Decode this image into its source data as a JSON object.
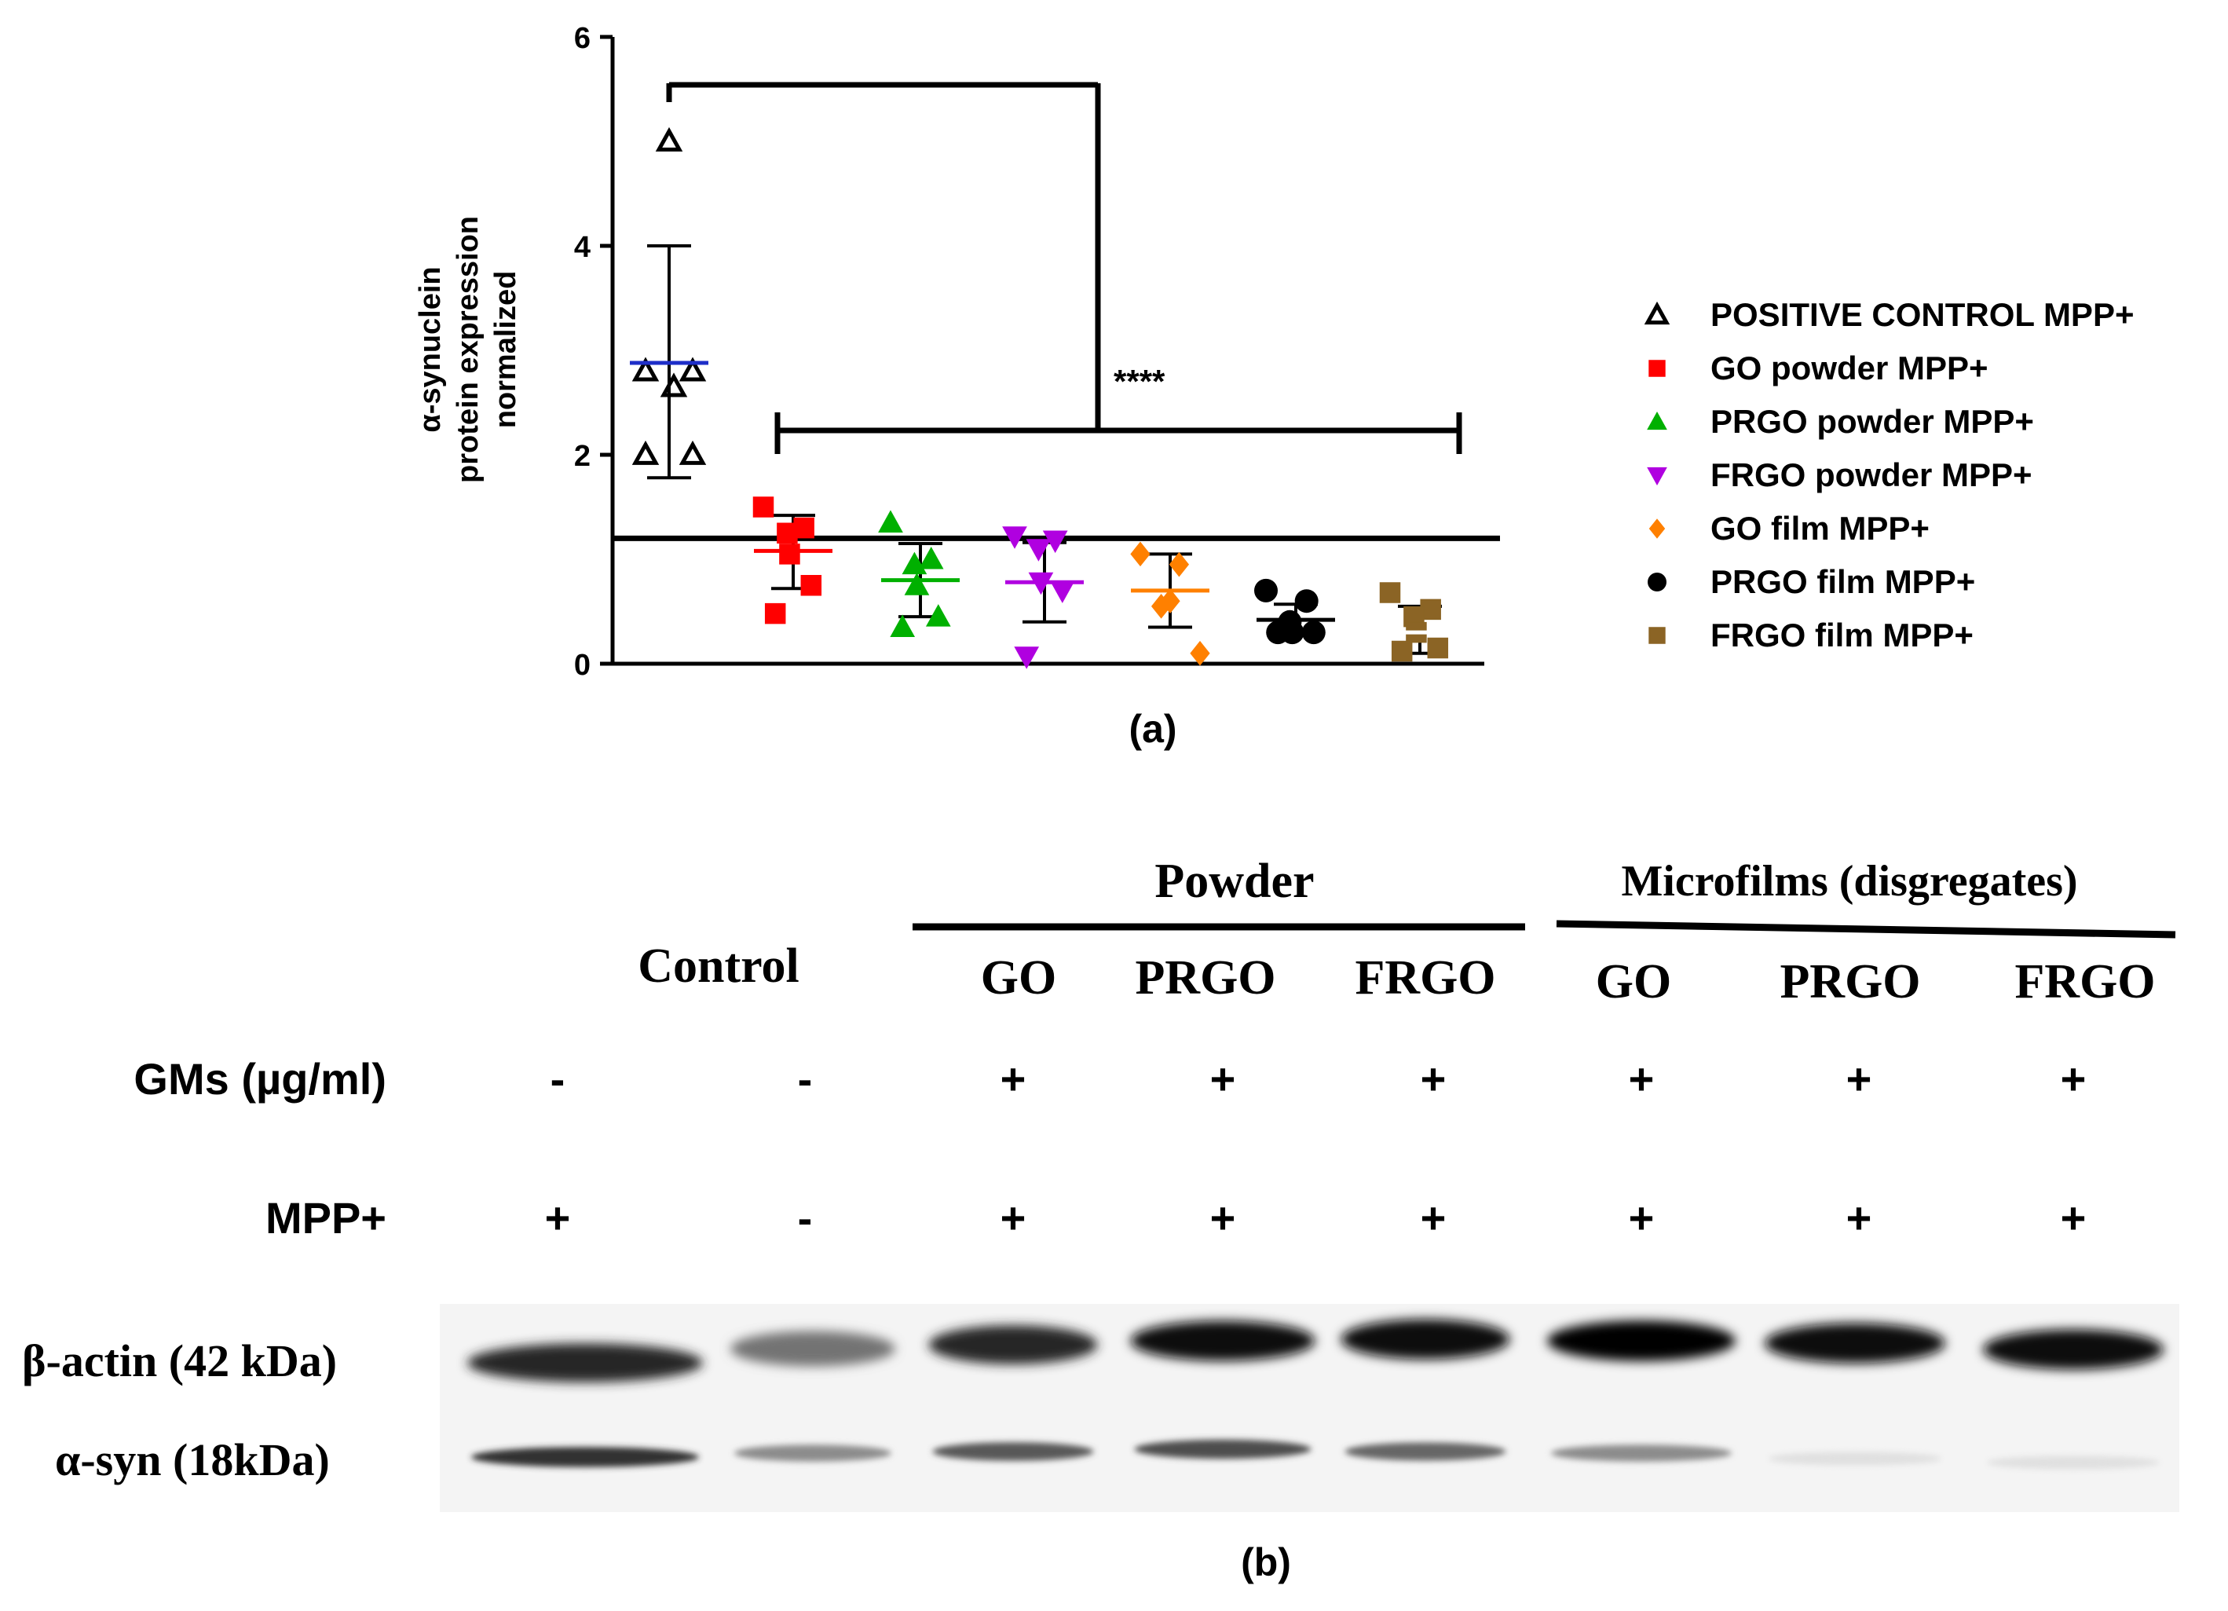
{
  "panel_a": {
    "caption": "(a)",
    "ylabel_line1": "α-synuclein",
    "ylabel_line2": "protein expression",
    "ylabel_line3": "normalized",
    "significance": "****",
    "legend": [
      {
        "label": "POSITIVE CONTROL  MPP+",
        "marker": "triangle-open",
        "color": "#000000"
      },
      {
        "label": "GO powder MPP+",
        "marker": "square",
        "color": "#ff0000"
      },
      {
        "label": "PRGO powder MPP+",
        "marker": "triangle",
        "color": "#00b000"
      },
      {
        "label": "FRGO powder MPP+",
        "marker": "triangle-down",
        "color": "#b000e0"
      },
      {
        "label": "GO film MPP+",
        "marker": "diamond",
        "color": "#ff8000"
      },
      {
        "label": "PRGO film MPP+",
        "marker": "circle",
        "color": "#000000"
      },
      {
        "label": "FRGO film MPP+",
        "marker": "square",
        "color": "#8b6425"
      }
    ]
  },
  "chart_data": {
    "type": "scatter",
    "title": "",
    "xlabel": "",
    "ylabel": "α-synuclein protein expression normalized",
    "ylim": [
      0,
      6
    ],
    "yticks": [
      0,
      2,
      4,
      6
    ],
    "reference_line": 1.2,
    "series": [
      {
        "name": "POSITIVE CONTROL  MPP+",
        "points": [
          5.0,
          2.8,
          2.8,
          2.65,
          2.0,
          2.0
        ],
        "mean": 2.88,
        "sd_low": 1.78,
        "sd_high": 4.0
      },
      {
        "name": "GO powder MPP+",
        "points": [
          1.5,
          1.3,
          1.25,
          1.05,
          0.75,
          0.48
        ],
        "mean": 1.08,
        "sd_low": 0.72,
        "sd_high": 1.42
      },
      {
        "name": "PRGO powder MPP+",
        "points": [
          1.35,
          1.0,
          0.95,
          0.75,
          0.45,
          0.35
        ],
        "mean": 0.8,
        "sd_low": 0.45,
        "sd_high": 1.15
      },
      {
        "name": "FRGO powder MPP+",
        "points": [
          1.22,
          1.18,
          1.1,
          0.78,
          0.7,
          0.07
        ],
        "mean": 0.78,
        "sd_low": 0.4,
        "sd_high": 1.16
      },
      {
        "name": "GO film MPP+",
        "points": [
          1.05,
          0.95,
          0.6,
          0.55,
          0.1
        ],
        "mean": 0.7,
        "sd_low": 0.35,
        "sd_high": 1.05
      },
      {
        "name": "PRGO film MPP+",
        "points": [
          0.7,
          0.6,
          0.4,
          0.3,
          0.3,
          0.3
        ],
        "mean": 0.42,
        "sd_low": 0.27,
        "sd_high": 0.57
      },
      {
        "name": "FRGO film MPP+",
        "points": [
          0.68,
          0.52,
          0.45,
          0.3,
          0.15,
          0.12
        ],
        "mean": 0.3,
        "sd_low": 0.1,
        "sd_high": 0.55
      }
    ]
  },
  "panel_b": {
    "caption": "(b)",
    "group_control": "Control",
    "group_powder": "Powder",
    "group_films": "Microfilms (disgregates)",
    "lanes": [
      "GO",
      "PRGO",
      "FRGO",
      "GO",
      "PRGO",
      "FRGO"
    ],
    "row_gms": {
      "label": "GMs (µg/ml)",
      "values": [
        "-",
        "-",
        "+",
        "+",
        "+",
        "+",
        "+",
        "+"
      ]
    },
    "row_mpp": {
      "label": "MPP+",
      "values": [
        "+",
        "-",
        "+",
        "+",
        "+",
        "+",
        "+",
        "+"
      ]
    },
    "band_actin_label": "β-actin (42 kDa)",
    "band_syn_label": "α-syn (18kDa)",
    "actin_intensity": [
      0.85,
      0.55,
      0.85,
      0.95,
      0.95,
      0.98,
      0.95,
      0.95
    ],
    "syn_intensity": [
      0.8,
      0.45,
      0.65,
      0.7,
      0.6,
      0.45,
      0.12,
      0.12
    ]
  }
}
